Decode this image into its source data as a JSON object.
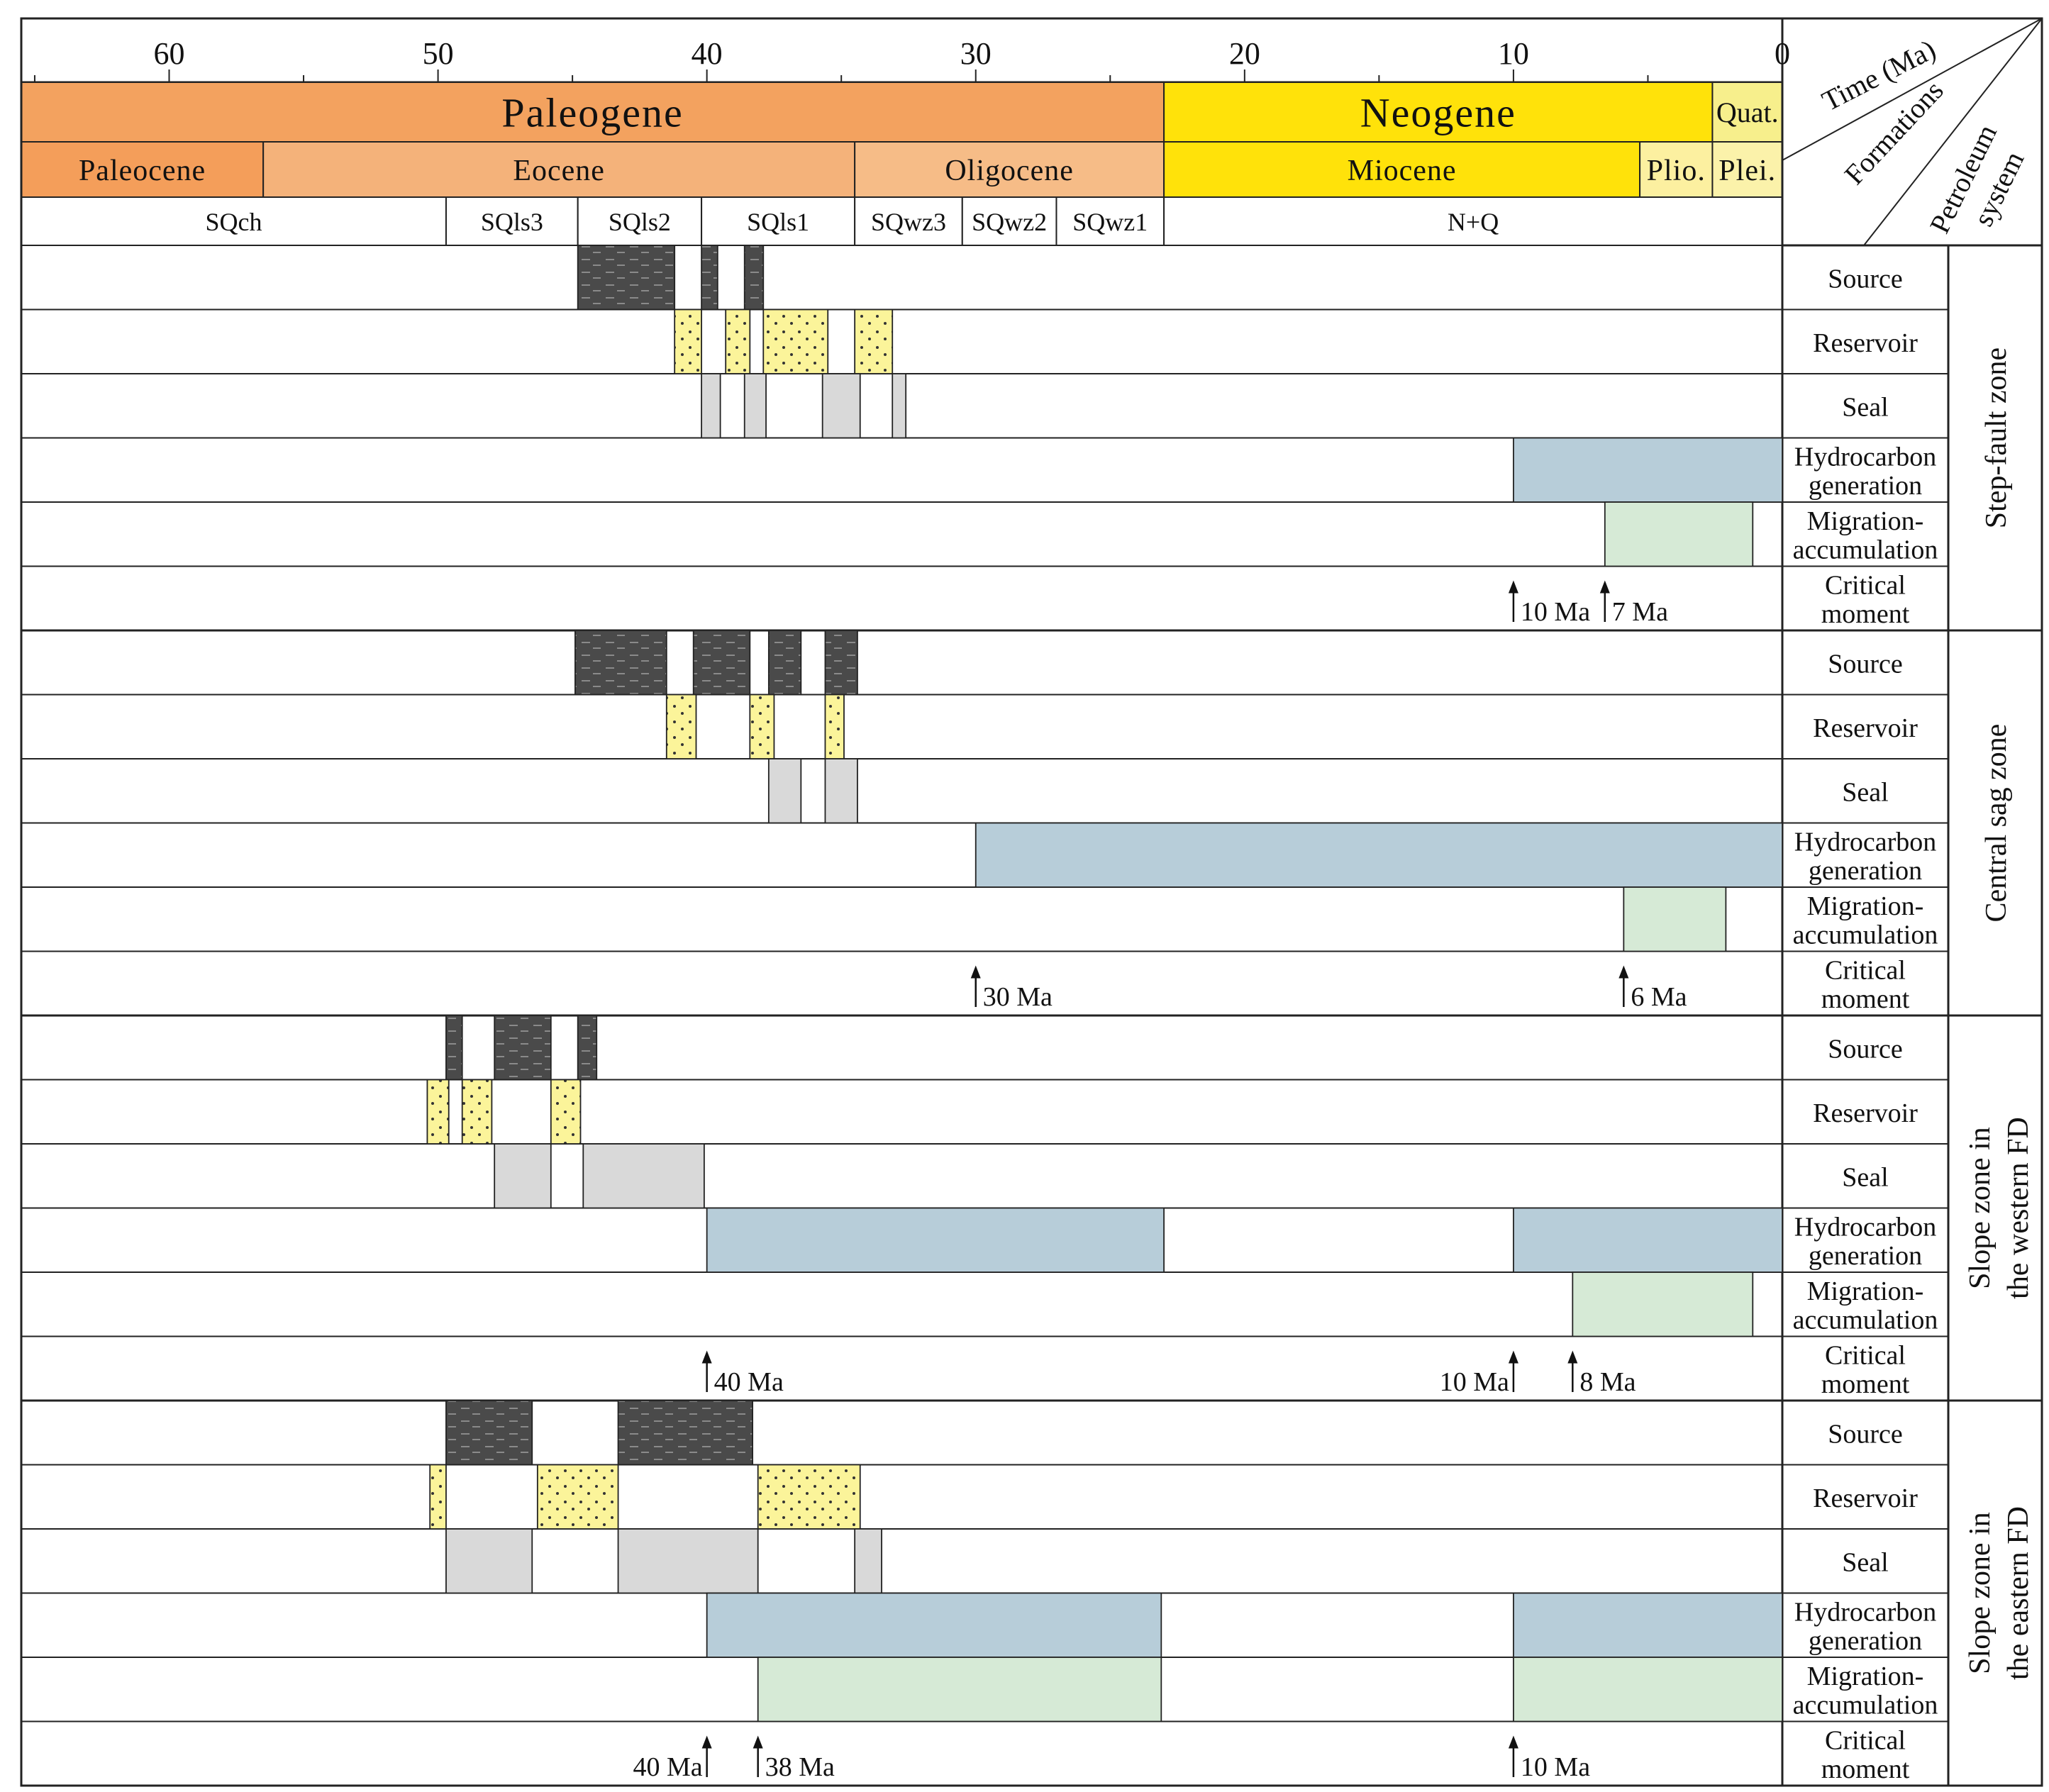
{
  "header": {
    "time_label": "Time (Ma)",
    "formations_label": "Formations",
    "petroleum_label_1": "Petroleum",
    "petroleum_label_2": "system"
  },
  "axis": {
    "min_ma": 0,
    "max_ma": 65.5,
    "ticks": [
      60,
      50,
      40,
      30,
      20,
      10,
      0
    ]
  },
  "periods": [
    {
      "label": "Paleogene",
      "from": 65.5,
      "to": 23.0,
      "color": "#f3a25f"
    },
    {
      "label": "Neogene",
      "from": 23.0,
      "to": 2.6,
      "color": "#ffe20a"
    },
    {
      "label": "Quat.",
      "from": 2.6,
      "to": 0,
      "color": "#f7ef8c"
    }
  ],
  "epochs": [
    {
      "label": "Paleocene",
      "from": 65.5,
      "to": 56.5,
      "color": "#f49e5a"
    },
    {
      "label": "Eocene",
      "from": 56.5,
      "to": 34.5,
      "color": "#f4b27a"
    },
    {
      "label": "Oligocene",
      "from": 34.5,
      "to": 23.0,
      "color": "#f6bc87"
    },
    {
      "label": "Miocene",
      "from": 23.0,
      "to": 5.3,
      "color": "#ffe20a"
    },
    {
      "label": "Plio.",
      "from": 5.3,
      "to": 2.6,
      "color": "#fcf0a0"
    },
    {
      "label": "Plei.",
      "from": 2.6,
      "to": 0,
      "color": "#fbf2aa"
    }
  ],
  "formations": [
    {
      "label": "SQch",
      "from": 65.5,
      "to": 49.7
    },
    {
      "label": "SQls3",
      "from": 49.7,
      "to": 44.8
    },
    {
      "label": "SQls2",
      "from": 44.8,
      "to": 40.2
    },
    {
      "label": "SQls1",
      "from": 40.2,
      "to": 34.5
    },
    {
      "label": "SQwz3",
      "from": 34.5,
      "to": 30.5
    },
    {
      "label": "SQwz2",
      "from": 30.5,
      "to": 27.0
    },
    {
      "label": "SQwz1",
      "from": 27.0,
      "to": 23.0
    },
    {
      "label": "N+Q",
      "from": 23.0,
      "to": 0
    }
  ],
  "row_labels": {
    "source": "Source",
    "reservoir": "Reservoir",
    "seal": "Seal",
    "hydrocarbon_1": "Hydrocarbon",
    "hydrocarbon_2": "generation",
    "migration_1": "Migration-",
    "migration_2": "accumulation",
    "critical_1": "Critical",
    "critical_2": "moment"
  },
  "colors": {
    "source": "#4a4a4a",
    "reservoir": "#fbf49a",
    "seal": "#d9d9d9",
    "generation": "#b7cdd9",
    "migration": "#d6ead6"
  },
  "zones": [
    {
      "name": "Step-fault zone",
      "name_line2": "",
      "source": [
        [
          44.8,
          41.2
        ],
        [
          40.2,
          39.6
        ],
        [
          38.6,
          37.9
        ]
      ],
      "reservoir": [
        [
          41.2,
          40.2
        ],
        [
          39.3,
          38.4
        ],
        [
          37.9,
          35.5
        ],
        [
          34.5,
          33.1
        ]
      ],
      "seal": [
        [
          40.2,
          39.5
        ],
        [
          38.6,
          37.8
        ],
        [
          35.7,
          34.3
        ],
        [
          33.1,
          32.6
        ]
      ],
      "generation": [
        [
          10.0,
          0
        ]
      ],
      "migration": [
        [
          6.6,
          1.1
        ]
      ],
      "critical": [
        {
          "ma": 10.0,
          "text": "10 Ma",
          "side": "right"
        },
        {
          "ma": 6.6,
          "text": "7 Ma",
          "side": "right"
        }
      ]
    },
    {
      "name": "Central sag zone",
      "name_line2": "",
      "source": [
        [
          44.9,
          41.5
        ],
        [
          40.5,
          38.4
        ],
        [
          37.7,
          36.5
        ],
        [
          35.6,
          34.4
        ]
      ],
      "reservoir": [
        [
          41.5,
          40.4
        ],
        [
          38.4,
          37.5
        ],
        [
          35.6,
          34.9
        ]
      ],
      "seal": [
        [
          37.7,
          36.5
        ],
        [
          35.6,
          34.4
        ]
      ],
      "generation": [
        [
          30.0,
          0
        ]
      ],
      "migration": [
        [
          5.9,
          2.1
        ]
      ],
      "critical": [
        {
          "ma": 30.0,
          "text": "30 Ma",
          "side": "right"
        },
        {
          "ma": 5.9,
          "text": "6 Ma",
          "side": "right"
        }
      ]
    },
    {
      "name": "Slope zone in",
      "name_line2": "the western FD",
      "source": [
        [
          49.7,
          49.1
        ],
        [
          47.9,
          45.8
        ],
        [
          44.8,
          44.1
        ]
      ],
      "reservoir": [
        [
          50.4,
          49.6
        ],
        [
          49.1,
          48.0
        ],
        [
          45.8,
          44.7
        ]
      ],
      "seal": [
        [
          47.9,
          45.8
        ],
        [
          44.6,
          40.1
        ]
      ],
      "generation": [
        [
          40.0,
          23.0
        ],
        [
          10.0,
          0
        ]
      ],
      "migration": [
        [
          7.8,
          1.1
        ]
      ],
      "critical": [
        {
          "ma": 40.0,
          "text": "40 Ma",
          "side": "right"
        },
        {
          "ma": 10.0,
          "text": "10 Ma",
          "side": "left"
        },
        {
          "ma": 7.8,
          "text": "8 Ma",
          "side": "right"
        }
      ]
    },
    {
      "name": "Slope zone in",
      "name_line2": "the eastern FD",
      "source": [
        [
          49.7,
          46.5
        ],
        [
          43.3,
          38.3
        ]
      ],
      "reservoir": [
        [
          50.3,
          49.7
        ],
        [
          46.3,
          43.3
        ],
        [
          38.1,
          34.3
        ]
      ],
      "seal": [
        [
          49.7,
          46.5
        ],
        [
          43.3,
          38.1
        ],
        [
          34.5,
          33.5
        ]
      ],
      "generation": [
        [
          40.0,
          23.1
        ],
        [
          10.0,
          0
        ]
      ],
      "migration": [
        [
          38.1,
          23.1
        ],
        [
          10.0,
          0
        ]
      ],
      "critical": [
        {
          "ma": 40.0,
          "text": "40 Ma",
          "side": "left"
        },
        {
          "ma": 38.1,
          "text": "38 Ma",
          "side": "right"
        },
        {
          "ma": 10.0,
          "text": "10 Ma",
          "side": "right"
        }
      ]
    }
  ]
}
